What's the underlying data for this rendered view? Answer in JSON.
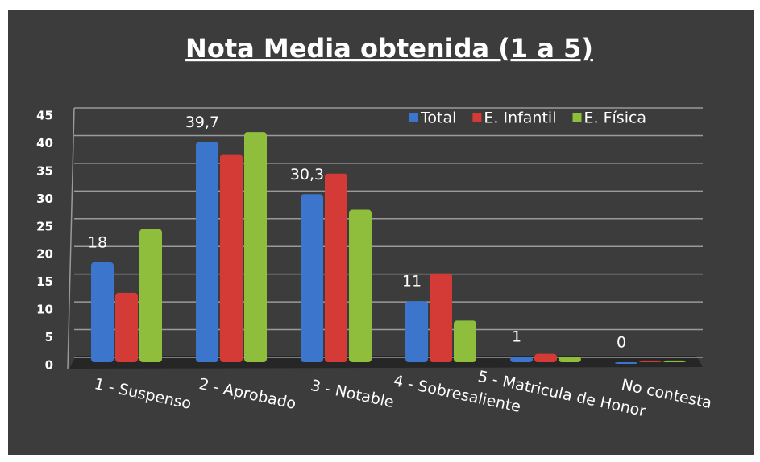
{
  "chart_data": {
    "type": "bar",
    "title": "Nota Media obtenida (1 a 5)",
    "categories": [
      "1 - Suspenso",
      "2 - Aprobado",
      "3 - Notable",
      "4 - Sobresaliente",
      "5 - Matricula de Honor",
      "No contesta"
    ],
    "series": [
      {
        "name": "Total",
        "color": "#3b76cc",
        "values": [
          18,
          39.7,
          30.3,
          11,
          1,
          0
        ],
        "value_labels": [
          "18",
          "39,7",
          "30,3",
          "11",
          "1",
          "0"
        ]
      },
      {
        "name": "E. Infantil",
        "color": "#d43b36",
        "values": [
          12.5,
          37.5,
          34,
          16,
          1.5,
          0.3
        ]
      },
      {
        "name": "E. Física",
        "color": "#8fbd3c",
        "values": [
          24,
          41.5,
          27.5,
          7.5,
          1,
          0.3
        ]
      }
    ],
    "ylim": [
      0,
      45
    ],
    "yticks": [
      0,
      5,
      10,
      15,
      20,
      25,
      30,
      35,
      40,
      45
    ],
    "grid": true,
    "legend": "top-right"
  }
}
